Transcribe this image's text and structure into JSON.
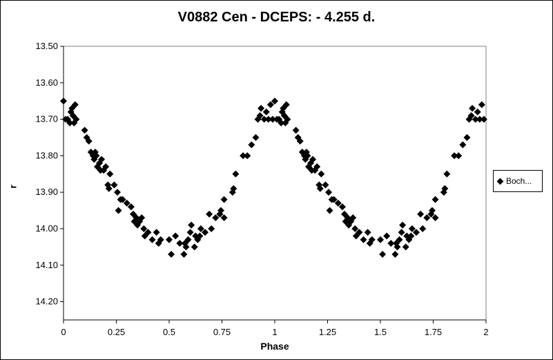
{
  "chart_data": {
    "type": "scatter",
    "title": "V0882 Cen - DCEPS: - 4.255 d.",
    "xlabel": "Phase",
    "ylabel": "r",
    "xlim": [
      0,
      2
    ],
    "ylim": [
      13.5,
      14.25
    ],
    "y_inverted": true,
    "grid": false,
    "legend_position": "right",
    "x_ticks": [
      "0",
      "0.25",
      "0.5",
      "0.75",
      "1",
      "1.25",
      "1.5",
      "1.75",
      "2"
    ],
    "y_ticks": [
      "13.50",
      "13.60",
      "13.70",
      "13.80",
      "13.90",
      "14.00",
      "14.10",
      "14.20"
    ],
    "series": [
      {
        "name": "Boch...",
        "marker": "diamond",
        "color": "#000000",
        "points": [
          [
            0.0,
            13.65
          ],
          [
            0.01,
            13.7
          ],
          [
            0.02,
            13.7
          ],
          [
            0.03,
            13.71
          ],
          [
            0.035,
            13.68
          ],
          [
            0.04,
            13.67
          ],
          [
            0.045,
            13.69
          ],
          [
            0.05,
            13.71
          ],
          [
            0.055,
            13.66
          ],
          [
            0.06,
            13.7
          ],
          [
            0.1,
            13.73
          ],
          [
            0.11,
            13.75
          ],
          [
            0.12,
            13.76
          ],
          [
            0.13,
            13.79
          ],
          [
            0.14,
            13.8
          ],
          [
            0.145,
            13.81
          ],
          [
            0.15,
            13.79
          ],
          [
            0.155,
            13.8
          ],
          [
            0.16,
            13.83
          ],
          [
            0.17,
            13.82
          ],
          [
            0.175,
            13.84
          ],
          [
            0.18,
            13.81
          ],
          [
            0.19,
            13.84
          ],
          [
            0.2,
            13.83
          ],
          [
            0.21,
            13.88
          ],
          [
            0.215,
            13.89
          ],
          [
            0.22,
            13.85
          ],
          [
            0.24,
            13.88
          ],
          [
            0.255,
            13.9
          ],
          [
            0.26,
            13.95
          ],
          [
            0.27,
            13.92
          ],
          [
            0.28,
            13.92
          ],
          [
            0.3,
            13.93
          ],
          [
            0.32,
            13.94
          ],
          [
            0.33,
            13.96
          ],
          [
            0.335,
            13.98
          ],
          [
            0.345,
            13.97
          ],
          [
            0.35,
            13.99
          ],
          [
            0.36,
            13.98
          ],
          [
            0.37,
            13.97
          ],
          [
            0.38,
            14.0
          ],
          [
            0.385,
            14.02
          ],
          [
            0.4,
            14.01
          ],
          [
            0.42,
            14.03
          ],
          [
            0.44,
            14.01
          ],
          [
            0.45,
            14.04
          ],
          [
            0.46,
            14.03
          ],
          [
            0.5,
            14.03
          ],
          [
            0.51,
            14.07
          ],
          [
            0.53,
            14.02
          ],
          [
            0.55,
            14.04
          ],
          [
            0.57,
            14.07
          ],
          [
            0.575,
            14.04
          ],
          [
            0.58,
            14.05
          ],
          [
            0.59,
            14.03
          ],
          [
            0.6,
            14.01
          ],
          [
            0.605,
            13.99
          ],
          [
            0.62,
            14.05
          ],
          [
            0.625,
            14.02
          ],
          [
            0.635,
            14.03
          ],
          [
            0.645,
            14.02
          ],
          [
            0.65,
            14.0
          ],
          [
            0.67,
            14.01
          ],
          [
            0.69,
            13.96
          ],
          [
            0.7,
            14.0
          ],
          [
            0.72,
            13.97
          ],
          [
            0.74,
            13.96
          ],
          [
            0.745,
            13.95
          ],
          [
            0.76,
            13.97
          ],
          [
            0.76,
            13.92
          ],
          [
            0.8,
            13.9
          ],
          [
            0.805,
            13.89
          ],
          [
            0.815,
            13.85
          ],
          [
            0.85,
            13.8
          ],
          [
            0.87,
            13.8
          ],
          [
            0.89,
            13.77
          ],
          [
            0.91,
            13.75
          ],
          [
            0.92,
            13.7
          ],
          [
            0.93,
            13.69
          ],
          [
            0.935,
            13.67
          ],
          [
            0.95,
            13.7
          ],
          [
            0.96,
            13.68
          ],
          [
            0.97,
            13.7
          ],
          [
            0.98,
            13.66
          ],
          [
            0.99,
            13.7
          ]
        ]
      }
    ],
    "legend": [
      "Boch..."
    ]
  }
}
